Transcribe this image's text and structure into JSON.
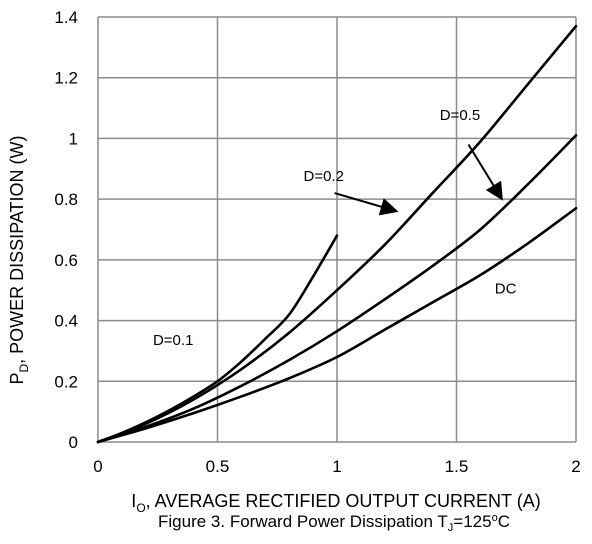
{
  "chart_data": {
    "type": "line",
    "title": "",
    "caption": {
      "prefix": "Figure 3. Forward Power Dissipation T",
      "sub": "J",
      "middle": "=125",
      "sup": "o",
      "suffix": "C"
    },
    "xlabel": {
      "main": "I",
      "sub": "O",
      "rest": ", AVERAGE RECTIFIED OUTPUT CURRENT (A)"
    },
    "ylabel": {
      "main": "P",
      "sub": "D",
      "rest": ", POWER DISSIPATION (W)"
    },
    "xlim": [
      0,
      2
    ],
    "ylim": [
      0,
      1.4
    ],
    "x_ticks": [
      0,
      0.5,
      1,
      1.5,
      2
    ],
    "x_tick_labels": [
      "0",
      "0.5",
      "1",
      "1.5",
      "2"
    ],
    "y_ticks": [
      0,
      0.2,
      0.4,
      0.6,
      0.8,
      1,
      1.2,
      1.4
    ],
    "y_tick_labels": [
      "0",
      "0.2",
      "0.4",
      "0.6",
      "0.8",
      "1",
      "1.2",
      "1.4"
    ],
    "grid": true,
    "legend": "none",
    "series": [
      {
        "name": "D=0.1",
        "x": [
          0,
          0.1,
          0.2,
          0.3,
          0.4,
          0.5,
          0.6,
          0.7,
          0.8,
          0.9,
          1.0
        ],
        "y": [
          0,
          0.03,
          0.065,
          0.105,
          0.15,
          0.2,
          0.265,
          0.34,
          0.42,
          0.545,
          0.68
        ]
      },
      {
        "name": "D=0.2",
        "x": [
          0,
          0.2,
          0.4,
          0.6,
          0.8,
          1.0,
          1.2,
          1.4,
          1.6,
          1.8,
          2.0
        ],
        "y": [
          0,
          0.06,
          0.14,
          0.24,
          0.36,
          0.5,
          0.65,
          0.82,
          0.99,
          1.18,
          1.37
        ]
      },
      {
        "name": "D=0.5",
        "x": [
          0,
          0.2,
          0.4,
          0.6,
          0.8,
          1.0,
          1.2,
          1.4,
          1.6,
          1.8,
          2.0
        ],
        "y": [
          0,
          0.05,
          0.11,
          0.185,
          0.27,
          0.365,
          0.47,
          0.58,
          0.7,
          0.85,
          1.01
        ]
      },
      {
        "name": "DC",
        "x": [
          0,
          0.2,
          0.4,
          0.6,
          0.8,
          1.0,
          1.2,
          1.4,
          1.6,
          1.8,
          2.0
        ],
        "y": [
          0,
          0.045,
          0.095,
          0.15,
          0.21,
          0.28,
          0.37,
          0.46,
          0.55,
          0.655,
          0.77
        ]
      }
    ],
    "annotations": [
      {
        "text": "D=0.1",
        "x": 0.23,
        "y": 0.32,
        "arrow": null
      },
      {
        "text": "D=0.2",
        "x": 0.86,
        "y": 0.86,
        "arrow": {
          "from": [
            0.99,
            0.82
          ],
          "to": [
            1.25,
            0.76
          ]
        }
      },
      {
        "text": "D=0.5",
        "x": 1.43,
        "y": 1.06,
        "arrow": {
          "from": [
            1.55,
            0.98
          ],
          "to": [
            1.69,
            0.8
          ]
        }
      },
      {
        "text": "DC",
        "x": 1.66,
        "y": 0.49,
        "arrow": null
      }
    ]
  }
}
